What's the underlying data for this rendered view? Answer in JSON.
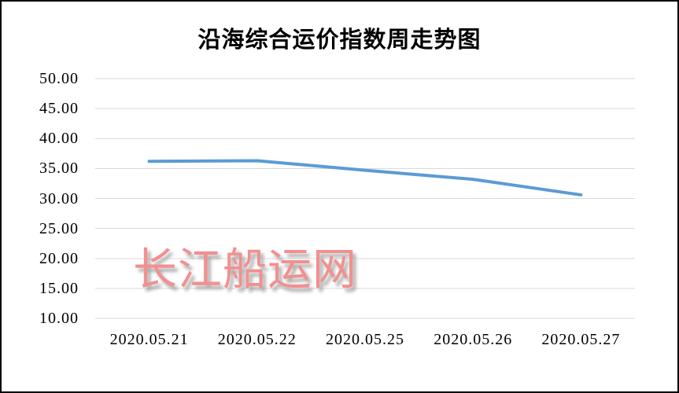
{
  "page": {
    "background_color": "#ffffff",
    "frame_border_color": "#000000"
  },
  "chart_data": {
    "type": "line",
    "title": "沿海综合运价指数周走势图",
    "categories": [
      "2020.05.21",
      "2020.05.22",
      "2020.05.25",
      "2020.05.26",
      "2020.05.27"
    ],
    "values": [
      36.2,
      36.3,
      34.7,
      33.2,
      30.6
    ],
    "xlabel": "",
    "ylabel": "",
    "ylim": [
      10,
      50
    ],
    "y_tick_step": 5,
    "y_tick_labels": [
      "50.00",
      "45.00",
      "40.00",
      "35.00",
      "30.00",
      "25.00",
      "20.00",
      "15.00",
      "10.00"
    ],
    "grid": true,
    "legend": false,
    "line_color": "#5B9BD5",
    "gridline_color": "#D9D9D9",
    "watermark": "长江船运网",
    "watermark_color": "#F29090"
  }
}
